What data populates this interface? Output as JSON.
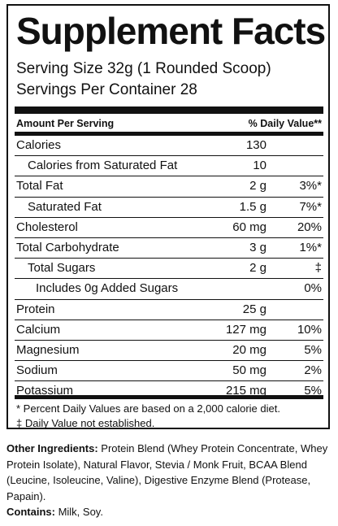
{
  "title": "Supplement Facts",
  "serving_size": "Serving Size 32g (1 Rounded Scoop)",
  "servings_per_container": "Servings Per Container  28",
  "header": {
    "amount_per_serving": "Amount Per Serving",
    "daily_value": "% Daily Value**"
  },
  "nutrients": [
    {
      "name": "Calories",
      "amount": "130",
      "dv": ""
    },
    {
      "name": "Calories from Saturated Fat",
      "amount": "10",
      "dv": ""
    },
    {
      "name": "Total Fat",
      "amount": "2 g",
      "dv": "3%*"
    },
    {
      "name": "Saturated Fat",
      "amount": "1.5 g",
      "dv": "7%*"
    },
    {
      "name": "Cholesterol",
      "amount": "60 mg",
      "dv": "20%"
    },
    {
      "name": "Total Carbohydrate",
      "amount": "3 g",
      "dv": "1%*"
    },
    {
      "name": "Total Sugars",
      "amount": "2 g",
      "dv": "‡"
    },
    {
      "name": "Includes 0g Added Sugars",
      "amount": "",
      "dv": "0%"
    },
    {
      "name": "Protein",
      "amount": "25 g",
      "dv": ""
    },
    {
      "name": "Calcium",
      "amount": "127 mg",
      "dv": "10%"
    },
    {
      "name": "Magnesium",
      "amount": "20 mg",
      "dv": "5%"
    },
    {
      "name": "Sodium",
      "amount": "50 mg",
      "dv": "2%"
    },
    {
      "name": "Potassium",
      "amount": "215 mg",
      "dv": "5%"
    }
  ],
  "footnotes": {
    "percent_dv": "* Percent Daily Values are based on a 2,000 calorie diet.",
    "not_established": "‡ Daily Value not established."
  },
  "other_ingredients": {
    "label": "Other Ingredients:",
    "text": " Protein Blend (Whey Protein Concentrate, Whey Protein Isolate), Natural Flavor, Stevia / Monk Fruit, BCAA Blend (Leucine, Isoleucine, Valine), Digestive Enzyme Blend (Protease, Papain)."
  },
  "contains": {
    "label": "Contains:",
    "text": " Milk, Soy."
  }
}
